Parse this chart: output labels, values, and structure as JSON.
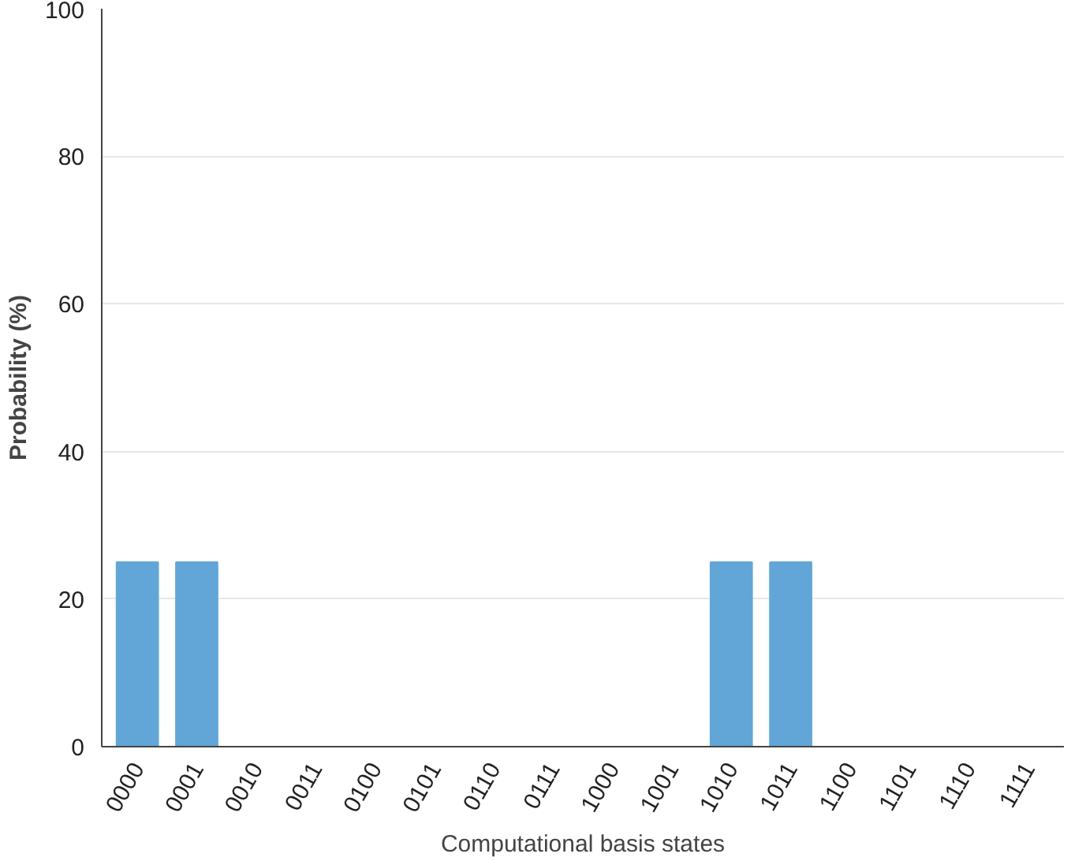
{
  "chart_data": {
    "type": "bar",
    "xlabel": "Computational basis states",
    "ylabel": "Probability (%)",
    "categories": [
      "0000",
      "0001",
      "0010",
      "0011",
      "0100",
      "0101",
      "0110",
      "0111",
      "1000",
      "1001",
      "1010",
      "1011",
      "1100",
      "1101",
      "1110",
      "1111"
    ],
    "values": [
      25,
      25,
      0,
      0,
      0,
      0,
      0,
      0,
      0,
      0,
      25,
      25,
      0,
      0,
      0,
      0
    ],
    "color": "#62a6d8",
    "ylim": [
      0,
      100
    ],
    "yticks": [
      0,
      20,
      40,
      60,
      80,
      100
    ],
    "grid": "y"
  }
}
